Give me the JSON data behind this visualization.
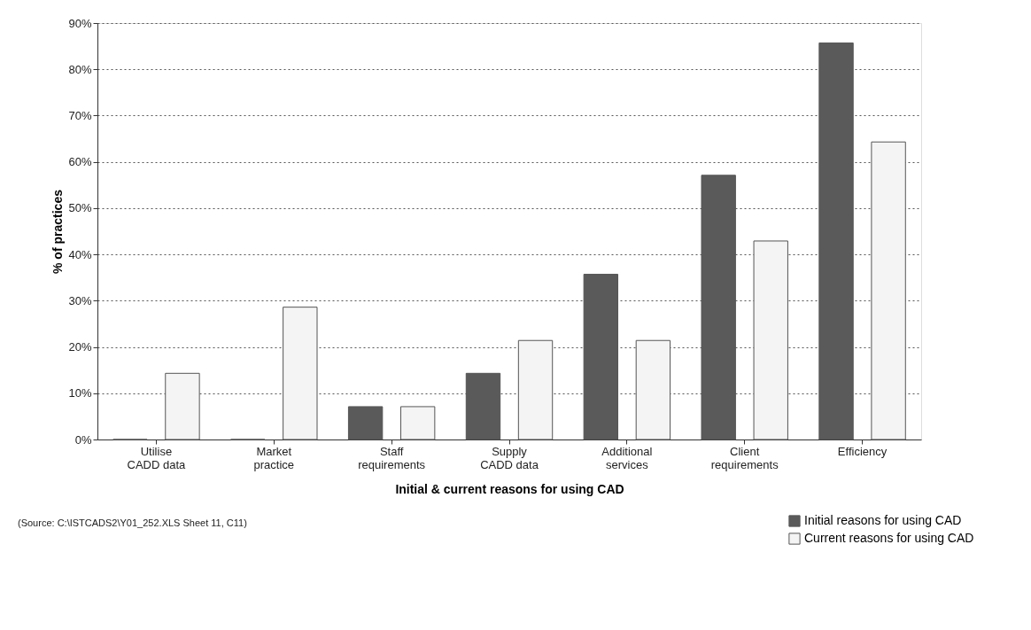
{
  "chart_data": {
    "type": "bar",
    "xlabel": "Initial & current reasons for using CAD",
    "ylabel": "% of practices",
    "categories": [
      "Utilise CADD data",
      "Market practice",
      "Staff requirements",
      "Supply CADD data",
      "Additional services",
      "Client requirements",
      "Efficiency"
    ],
    "series": [
      {
        "name": "Initial reasons for using CAD",
        "color": "#5a5a5a",
        "values": [
          0,
          0,
          7.1,
          14.3,
          35.7,
          57.1,
          85.7
        ]
      },
      {
        "name": "Current reasons for using CAD",
        "color": "#f4f4f4",
        "values": [
          14.3,
          28.6,
          7.1,
          21.4,
          21.4,
          42.9,
          64.3
        ]
      }
    ],
    "ylim": [
      0,
      90
    ],
    "yticks": [
      {
        "value": 0,
        "label": "0%"
      },
      {
        "value": 10,
        "label": "10%"
      },
      {
        "value": 20,
        "label": "20%"
      },
      {
        "value": 30,
        "label": "30%"
      },
      {
        "value": 40,
        "label": "40%"
      },
      {
        "value": 50,
        "label": "50%"
      },
      {
        "value": 60,
        "label": "60%"
      },
      {
        "value": 70,
        "label": "70%"
      },
      {
        "value": 80,
        "label": "80%"
      },
      {
        "value": 90,
        "label": "90%"
      }
    ],
    "grid": "y",
    "legend": "bottom right",
    "annotations": [
      "(Source: C:\\ISTCADS2\\Y01_252.XLS Sheet 11, C11)"
    ]
  }
}
